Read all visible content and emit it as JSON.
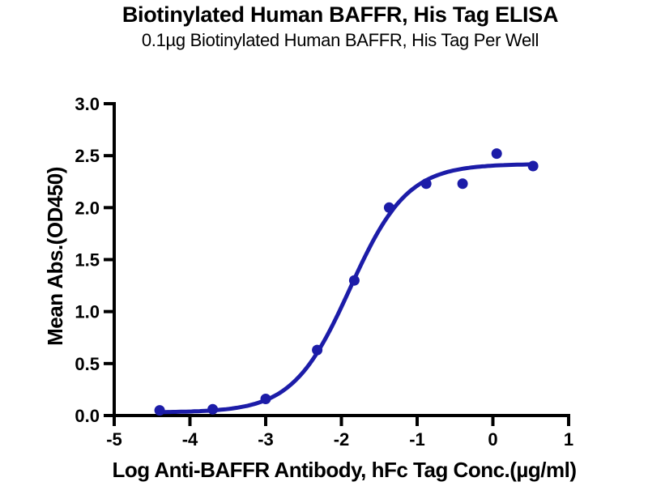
{
  "chart_data": {
    "type": "scatter",
    "title": "Biotinylated Human BAFFR, His Tag ELISA",
    "subtitle": "0.1µg Biotinylated Human BAFFR, His Tag Per Well",
    "xlabel": "Log Anti-BAFFR Antibody, hFc Tag Conc.(µg/ml)",
    "ylabel": "Mean Abs.(OD450)",
    "xlim": [
      -5,
      1
    ],
    "ylim": [
      0,
      3
    ],
    "xtick_values": [
      -5,
      -4,
      -3,
      -2,
      -1,
      0,
      1
    ],
    "xtick_labels": [
      "-5",
      "-4",
      "-3",
      "-2",
      "-1",
      "0",
      "1"
    ],
    "ytick_values": [
      0,
      0.5,
      1,
      1.5,
      2,
      2.5,
      3
    ],
    "ytick_labels": [
      "0.0",
      "0.5",
      "1.0",
      "1.5",
      "2.0",
      "2.5",
      "3.0"
    ],
    "grid": false,
    "axis_color": "#000000",
    "background": "#ffffff",
    "series": [
      {
        "marker": "circle",
        "color": "#1c1ca8",
        "points": [
          [
            -4.4,
            0.05
          ],
          [
            -3.7,
            0.06
          ],
          [
            -3.0,
            0.16
          ],
          [
            -2.32,
            0.63
          ],
          [
            -1.83,
            1.3
          ],
          [
            -1.37,
            2.0
          ],
          [
            -0.88,
            2.23
          ],
          [
            -0.4,
            2.23
          ],
          [
            0.05,
            2.52
          ],
          [
            0.53,
            2.4
          ]
        ],
        "fit_curve": {
          "model": "4PL",
          "bottom": 0.03,
          "top": 2.42,
          "logEC50": -1.885,
          "hillslope": 1.15,
          "x_start": -4.4,
          "x_end": 0.53
        }
      }
    ]
  }
}
